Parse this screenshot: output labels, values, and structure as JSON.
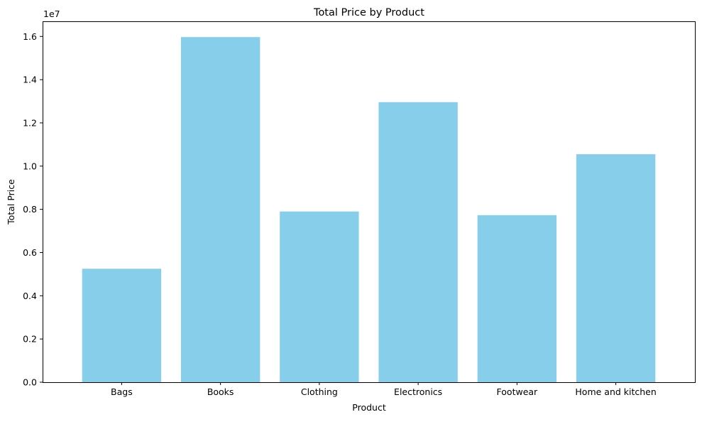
{
  "chart_data": {
    "type": "bar",
    "title": "Total Price by Product",
    "xlabel": "Product",
    "ylabel": "Total Price",
    "y_scale_label": "1e7",
    "categories": [
      "Bags",
      "Books",
      "Clothing",
      "Electronics",
      "Footwear",
      "Home and kitchen"
    ],
    "values": [
      5250000,
      15970000,
      7900000,
      12960000,
      7730000,
      10550000
    ],
    "ylim": [
      0,
      16700000
    ],
    "yticks": [
      0,
      2000000,
      4000000,
      6000000,
      8000000,
      10000000,
      12000000,
      14000000,
      16000000
    ],
    "ytick_labels": [
      "0.0",
      "0.2",
      "0.4",
      "0.6",
      "0.8",
      "1.0",
      "1.2",
      "1.4",
      "1.6"
    ],
    "grid": false,
    "legend": "none",
    "bar_color": "#87ceeb"
  }
}
